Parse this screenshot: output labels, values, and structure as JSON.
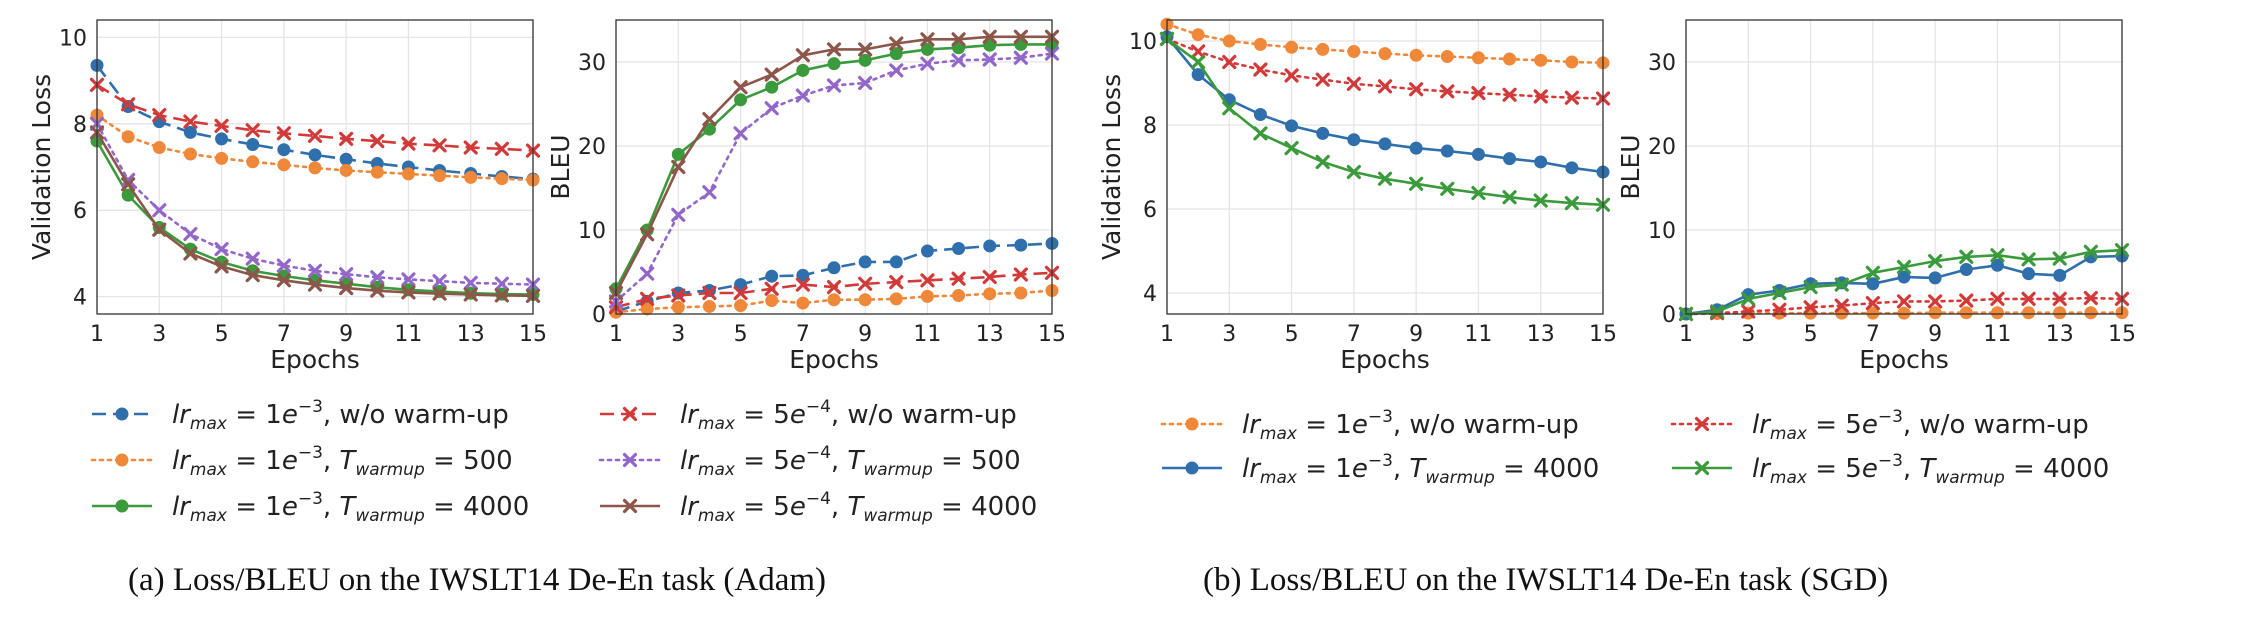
{
  "chart_data": [
    {
      "type": "line",
      "ylabel": "Validation Loss",
      "xlabel": "Epochs",
      "x": [
        1,
        2,
        3,
        4,
        5,
        6,
        7,
        8,
        9,
        10,
        11,
        12,
        13,
        14,
        15
      ],
      "xticks": [
        1,
        3,
        5,
        7,
        9,
        11,
        13,
        15
      ],
      "ylim": [
        3.6,
        10.4
      ],
      "yticks": [
        4,
        6,
        8,
        10
      ],
      "grid": true,
      "series": [
        {
          "name": "lr_max=1e-3, w/o warm-up",
          "color": "#2f6fac",
          "dash": "dashed",
          "marker": "circle",
          "values": [
            9.35,
            8.4,
            8.05,
            7.8,
            7.65,
            7.52,
            7.4,
            7.28,
            7.18,
            7.08,
            7.0,
            6.92,
            6.85,
            6.78,
            6.72
          ]
        },
        {
          "name": "lr_max=1e-3, T_warmup=500",
          "color": "#f0883a",
          "dash": "dotted",
          "marker": "circle",
          "values": [
            8.2,
            7.7,
            7.45,
            7.3,
            7.2,
            7.12,
            7.05,
            6.98,
            6.92,
            6.88,
            6.84,
            6.8,
            6.76,
            6.73,
            6.7
          ]
        },
        {
          "name": "lr_max=1e-3, T_warmup=4000",
          "color": "#3b9a3b",
          "dash": "solid",
          "marker": "circle",
          "values": [
            7.6,
            6.35,
            5.6,
            5.1,
            4.8,
            4.6,
            4.48,
            4.38,
            4.3,
            4.22,
            4.16,
            4.12,
            4.08,
            4.06,
            4.05
          ]
        },
        {
          "name": "lr_max=5e-4, w/o warm-up",
          "color": "#d23a3a",
          "dash": "dashed",
          "marker": "x",
          "values": [
            8.9,
            8.45,
            8.2,
            8.05,
            7.95,
            7.85,
            7.78,
            7.72,
            7.65,
            7.6,
            7.54,
            7.5,
            7.45,
            7.42,
            7.38
          ]
        },
        {
          "name": "lr_max=5e-4, T_warmup=500",
          "color": "#9367c7",
          "dash": "dotted",
          "marker": "x",
          "values": [
            8.0,
            6.7,
            6.0,
            5.45,
            5.1,
            4.88,
            4.72,
            4.6,
            4.52,
            4.45,
            4.4,
            4.36,
            4.32,
            4.3,
            4.28
          ]
        },
        {
          "name": "lr_max=5e-4, T_warmup=4000",
          "color": "#8c564b",
          "dash": "solid",
          "marker": "x",
          "values": [
            7.8,
            6.6,
            5.55,
            5.0,
            4.7,
            4.5,
            4.38,
            4.28,
            4.2,
            4.14,
            4.1,
            4.07,
            4.05,
            4.03,
            4.02
          ]
        }
      ]
    },
    {
      "type": "line",
      "ylabel": "BLEU",
      "xlabel": "Epochs",
      "x": [
        1,
        2,
        3,
        4,
        5,
        6,
        7,
        8,
        9,
        10,
        11,
        12,
        13,
        14,
        15
      ],
      "xticks": [
        1,
        3,
        5,
        7,
        9,
        11,
        13,
        15
      ],
      "ylim": [
        0,
        35
      ],
      "yticks": [
        0,
        10,
        20,
        30
      ],
      "grid": true,
      "series": [
        {
          "name": "lr_max=1e-3, w/o warm-up",
          "color": "#2f6fac",
          "dash": "dashed",
          "marker": "circle",
          "values": [
            0.3,
            1.5,
            2.5,
            2.8,
            3.5,
            4.5,
            4.6,
            5.5,
            6.2,
            6.2,
            7.5,
            7.8,
            8.1,
            8.2,
            8.4
          ]
        },
        {
          "name": "lr_max=1e-3, T_warmup=500",
          "color": "#f0883a",
          "dash": "dotted",
          "marker": "circle",
          "values": [
            0.2,
            0.6,
            0.8,
            0.9,
            1.0,
            1.6,
            1.3,
            1.7,
            1.7,
            1.8,
            2.1,
            2.2,
            2.4,
            2.5,
            2.8
          ]
        },
        {
          "name": "lr_max=1e-3, T_warmup=4000",
          "color": "#3b9a3b",
          "dash": "solid",
          "marker": "circle",
          "values": [
            3.0,
            10.0,
            19.0,
            22.0,
            25.5,
            27.0,
            29.0,
            29.8,
            30.2,
            31.0,
            31.5,
            31.7,
            32.0,
            32.1,
            32.1
          ]
        },
        {
          "name": "lr_max=5e-4, w/o warm-up",
          "color": "#d23a3a",
          "dash": "dashed",
          "marker": "x",
          "values": [
            0.8,
            1.8,
            2.2,
            2.5,
            2.5,
            3.0,
            3.5,
            3.2,
            3.6,
            3.8,
            4.0,
            4.2,
            4.4,
            4.7,
            4.9
          ]
        },
        {
          "name": "lr_max=5e-4, T_warmup=500",
          "color": "#9367c7",
          "dash": "dotted",
          "marker": "x",
          "values": [
            1.5,
            4.8,
            11.8,
            14.5,
            21.5,
            24.5,
            26.0,
            27.2,
            27.5,
            29.0,
            29.8,
            30.2,
            30.3,
            30.5,
            31.0
          ]
        },
        {
          "name": "lr_max=5e-4, T_warmup=4000",
          "color": "#8c564b",
          "dash": "solid",
          "marker": "x",
          "values": [
            2.5,
            9.5,
            17.5,
            23.2,
            27.0,
            28.5,
            30.8,
            31.5,
            31.5,
            32.2,
            32.7,
            32.7,
            33.0,
            33.0,
            33.0
          ]
        }
      ]
    },
    {
      "type": "line",
      "ylabel": "Validation Loss",
      "xlabel": "Epochs",
      "x": [
        1,
        2,
        3,
        4,
        5,
        6,
        7,
        8,
        9,
        10,
        11,
        12,
        13,
        14,
        15
      ],
      "xticks": [
        1,
        3,
        5,
        7,
        9,
        11,
        13,
        15
      ],
      "ylim": [
        3.5,
        10.5
      ],
      "yticks": [
        4,
        6,
        8,
        10
      ],
      "grid": true,
      "series": [
        {
          "name": "lr_max=1e-3, w/o warm-up",
          "color": "#f0883a",
          "dash": "dotted",
          "marker": "circle",
          "values": [
            10.4,
            10.15,
            10.0,
            9.92,
            9.85,
            9.8,
            9.75,
            9.7,
            9.66,
            9.63,
            9.6,
            9.57,
            9.54,
            9.5,
            9.48
          ]
        },
        {
          "name": "lr_max=1e-3, T_warmup=4000",
          "color": "#2f6fac",
          "dash": "solid",
          "marker": "circle",
          "values": [
            10.1,
            9.2,
            8.6,
            8.25,
            7.98,
            7.8,
            7.65,
            7.55,
            7.45,
            7.38,
            7.3,
            7.2,
            7.12,
            6.98,
            6.88
          ]
        },
        {
          "name": "lr_max=5e-3, w/o warm-up",
          "color": "#d23a3a",
          "dash": "dotted",
          "marker": "x",
          "values": [
            10.05,
            9.75,
            9.5,
            9.32,
            9.18,
            9.08,
            8.98,
            8.92,
            8.85,
            8.8,
            8.76,
            8.72,
            8.68,
            8.65,
            8.63
          ]
        },
        {
          "name": "lr_max=5e-3, T_warmup=4000",
          "color": "#3b9a3b",
          "dash": "solid",
          "marker": "x",
          "values": [
            10.05,
            9.5,
            8.4,
            7.8,
            7.45,
            7.12,
            6.88,
            6.72,
            6.6,
            6.48,
            6.38,
            6.28,
            6.2,
            6.14,
            6.1
          ]
        }
      ]
    },
    {
      "type": "line",
      "ylabel": "BLEU",
      "xlabel": "Epochs",
      "x": [
        1,
        2,
        3,
        4,
        5,
        6,
        7,
        8,
        9,
        10,
        11,
        12,
        13,
        14,
        15
      ],
      "xticks": [
        1,
        3,
        5,
        7,
        9,
        11,
        13,
        15
      ],
      "ylim": [
        0,
        35
      ],
      "yticks": [
        0,
        10,
        20,
        30
      ],
      "grid": true,
      "series": [
        {
          "name": "lr_max=1e-3, w/o warm-up",
          "color": "#f0883a",
          "dash": "dotted",
          "marker": "circle",
          "values": [
            0,
            0.05,
            0.1,
            0.1,
            0.1,
            0.1,
            0.1,
            0.1,
            0.15,
            0.15,
            0.15,
            0.15,
            0.15,
            0.15,
            0.15
          ]
        },
        {
          "name": "lr_max=1e-3, T_warmup=4000",
          "color": "#2f6fac",
          "dash": "solid",
          "marker": "circle",
          "values": [
            0,
            0.5,
            2.3,
            2.8,
            3.6,
            3.7,
            3.6,
            4.4,
            4.3,
            5.3,
            5.8,
            4.8,
            4.6,
            6.8,
            6.9
          ]
        },
        {
          "name": "lr_max=5e-3, w/o warm-up",
          "color": "#d23a3a",
          "dash": "dotted",
          "marker": "x",
          "values": [
            0,
            0.1,
            0.3,
            0.5,
            0.8,
            1.0,
            1.3,
            1.5,
            1.5,
            1.6,
            1.8,
            1.8,
            1.8,
            1.9,
            1.8
          ]
        },
        {
          "name": "lr_max=5e-3, T_warmup=4000",
          "color": "#3b9a3b",
          "dash": "solid",
          "marker": "x",
          "values": [
            0,
            0.3,
            1.8,
            2.5,
            3.2,
            3.5,
            4.9,
            5.6,
            6.3,
            6.8,
            7.0,
            6.5,
            6.6,
            7.4,
            7.6
          ]
        }
      ]
    }
  ],
  "legend_a": [
    [
      {
        "lr": "1",
        "exp": "−3",
        "suffix": ", w/o warm-up"
      },
      {
        "lr": "1",
        "exp": "−3",
        "suffix": ", ",
        "warm": "500"
      },
      {
        "lr": "1",
        "exp": "−3",
        "suffix": ", ",
        "warm": "4000"
      }
    ],
    [
      {
        "lr": "5",
        "exp": "−4",
        "suffix": ", w/o warm-up"
      },
      {
        "lr": "5",
        "exp": "−4",
        "suffix": ", ",
        "warm": "500"
      },
      {
        "lr": "5",
        "exp": "−4",
        "suffix": ", ",
        "warm": "4000"
      }
    ]
  ],
  "legend_b": [
    [
      {
        "lr": "1",
        "exp": "−3",
        "suffix": ", w/o warm-up"
      },
      {
        "lr": "1",
        "exp": "−3",
        "suffix": ", ",
        "warm": "4000"
      }
    ],
    [
      {
        "lr": "5",
        "exp": "−3",
        "suffix": ", w/o warm-up"
      },
      {
        "lr": "5",
        "exp": "−3",
        "suffix": ", ",
        "warm": "4000"
      }
    ]
  ],
  "captions": {
    "a": "(a) Loss/BLEU on the IWSLT14 De-En task (Adam)",
    "b": "(b) Loss/BLEU on the IWSLT14 De-En task (SGD)"
  }
}
